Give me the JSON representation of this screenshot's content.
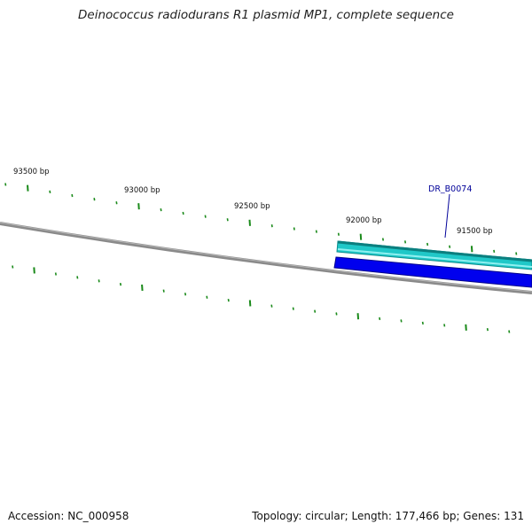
{
  "title": "Deinococcus radiodurans R1 plasmid MP1, complete sequence",
  "accession": {
    "label": "Accession:",
    "value": "NC_000958"
  },
  "summary": {
    "topology_label": "Topology:",
    "topology": "circular",
    "length_label": "Length:",
    "length": "177,466 bp",
    "genes_label": "Genes:",
    "genes": "131"
  },
  "ruler": {
    "labels": [
      "93500 bp",
      "93000 bp",
      "92500 bp",
      "92000 bp",
      "91500 bp"
    ]
  },
  "features": [
    {
      "name": "DR_B0074",
      "strand": "forward",
      "color": "#20c8c8"
    },
    {
      "name": "",
      "strand": "reverse",
      "color": "#0000ee"
    }
  ],
  "colors": {
    "backbone": "#808080",
    "ticks": "#1a8a1a",
    "feature_label": "#000099"
  }
}
